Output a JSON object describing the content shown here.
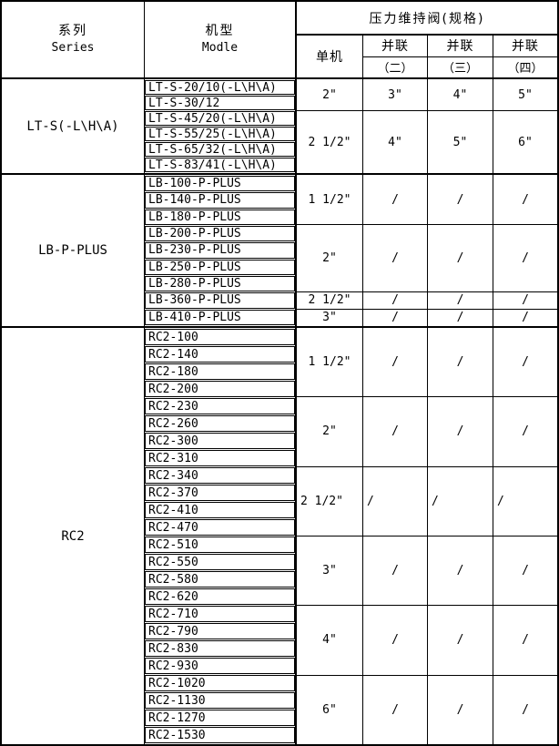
{
  "colors": {
    "line": "#000000",
    "background": "#ffffff",
    "text": "#000000"
  },
  "header": {
    "series_zh": "系列",
    "series_en": "Series",
    "model_zh": "机型",
    "model_en": "Modle",
    "valve_title": "压力维持阀(规格)",
    "single_unit": "单机",
    "parallel_cols": [
      {
        "top": "并联",
        "bottom": "（二）"
      },
      {
        "top": "并联",
        "bottom": "（三）"
      },
      {
        "top": "并联",
        "bottom": "（四）"
      }
    ]
  },
  "sections": [
    {
      "series": "LT-S(-L\\H\\A)",
      "groups": [
        {
          "models": [
            "LT-S-20/10(-L\\H\\A)",
            "LT-S-30/12"
          ],
          "single_unit": "2\"",
          "parallel_2": "3\"",
          "parallel_3": "4\"",
          "parallel_4": "5\"",
          "align": "center"
        },
        {
          "models": [
            "LT-S-45/20(-L\\H\\A)",
            "LT-S-55/25(-L\\H\\A)",
            "LT-S-65/32(-L\\H\\A)",
            "LT-S-83/41(-L\\H\\A)"
          ],
          "single_unit": "2 1/2\"",
          "parallel_2": "4\"",
          "parallel_3": "5\"",
          "parallel_4": "6\"",
          "align": "center"
        }
      ]
    },
    {
      "series": "LB-P-PLUS",
      "groups": [
        {
          "models": [
            "LB-100-P-PLUS",
            "LB-140-P-PLUS",
            "LB-180-P-PLUS"
          ],
          "single_unit": "1 1/2\"",
          "parallel_2": "/",
          "parallel_3": "/",
          "parallel_4": "/",
          "align": "center"
        },
        {
          "models": [
            "LB-200-P-PLUS",
            "LB-230-P-PLUS",
            "LB-250-P-PLUS",
            "LB-280-P-PLUS"
          ],
          "single_unit": "2\"",
          "parallel_2": "/",
          "parallel_3": "/",
          "parallel_4": "/",
          "align": "center"
        },
        {
          "models": [
            "LB-360-P-PLUS"
          ],
          "single_unit": "2 1/2\"",
          "parallel_2": "/",
          "parallel_3": "/",
          "parallel_4": "/",
          "align": "center"
        },
        {
          "models": [
            "LB-410-P-PLUS"
          ],
          "single_unit": "3\"",
          "parallel_2": "/",
          "parallel_3": "/",
          "parallel_4": "/",
          "align": "center"
        }
      ]
    },
    {
      "series": "RC2",
      "groups": [
        {
          "models": [
            "RC2-100",
            "RC2-140",
            "RC2-180",
            "RC2-200"
          ],
          "single_unit": "1 1/2\"",
          "parallel_2": "/",
          "parallel_3": "/",
          "parallel_4": "/",
          "align": "center"
        },
        {
          "models": [
            "RC2-230",
            "RC2-260",
            "RC2-300",
            "RC2-310"
          ],
          "single_unit": "2\"",
          "parallel_2": "/",
          "parallel_3": "/",
          "parallel_4": "/",
          "align": "center"
        },
        {
          "models": [
            "RC2-340",
            "RC2-370",
            "RC2-410",
            "RC2-470"
          ],
          "single_unit": "2 1/2\"",
          "parallel_2": "/",
          "parallel_3": "/",
          "parallel_4": "/",
          "align": "left"
        },
        {
          "models": [
            "RC2-510",
            "RC2-550",
            "RC2-580",
            "RC2-620"
          ],
          "single_unit": "3\"",
          "parallel_2": "/",
          "parallel_3": "/",
          "parallel_4": "/",
          "align": "center"
        },
        {
          "models": [
            "RC2-710",
            "RC2-790",
            "RC2-830",
            "RC2-930"
          ],
          "single_unit": "4\"",
          "parallel_2": "/",
          "parallel_3": "/",
          "parallel_4": "/",
          "align": "center"
        },
        {
          "models": [
            "RC2-1020",
            "RC2-1130",
            "RC2-1270",
            "RC2-1530"
          ],
          "single_unit": "6\"",
          "parallel_2": "/",
          "parallel_3": "/",
          "parallel_4": "/",
          "align": "center"
        }
      ]
    }
  ]
}
